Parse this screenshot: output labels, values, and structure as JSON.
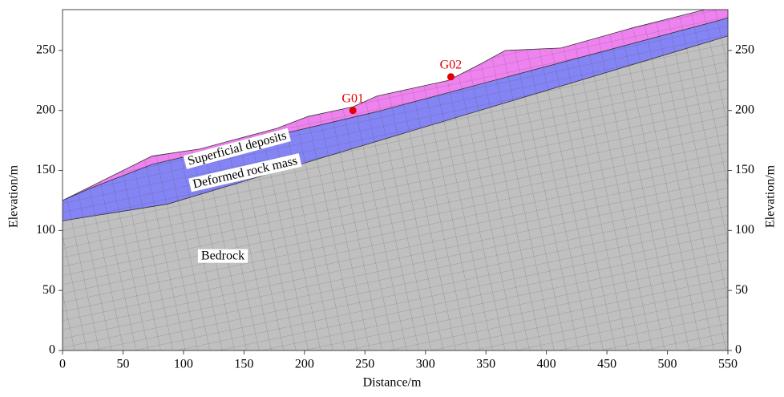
{
  "chart_data": {
    "type": "area",
    "xlabel": "Distance/m",
    "ylabel": "Elevation/m",
    "y2label": "Elevation/m",
    "xlim": [
      0,
      550
    ],
    "ylim": [
      0,
      284
    ],
    "xticks": [
      0,
      50,
      100,
      150,
      200,
      250,
      300,
      350,
      400,
      450,
      500,
      550
    ],
    "yticks": [
      0,
      50,
      100,
      150,
      200,
      250
    ],
    "layers": [
      {
        "name": "Superficial deposits",
        "color": "#ee82ee",
        "x": [
          0,
          74,
          114,
          147,
          177,
          203,
          240,
          260,
          319,
          346,
          366,
          412,
          472,
          531,
          550
        ],
        "top": [
          125,
          162,
          168,
          177,
          185,
          195,
          203,
          212,
          225,
          239,
          250,
          252,
          269,
          284,
          284
        ]
      },
      {
        "name": "Deformed rock mass",
        "color": "#8484f4",
        "x": [
          0,
          25,
          74,
          260,
          550
        ],
        "top": [
          125,
          136,
          155,
          199,
          277
        ]
      },
      {
        "name": "Bedrock",
        "color": "#c0c0c0",
        "x": [
          0,
          87,
          550
        ],
        "top": [
          108,
          122,
          262
        ]
      }
    ],
    "points": [
      {
        "name": "G01",
        "x": 240,
        "y": 200,
        "color": "#e00000"
      },
      {
        "name": "G02",
        "x": 321,
        "y": 228,
        "color": "#e00000"
      }
    ]
  }
}
